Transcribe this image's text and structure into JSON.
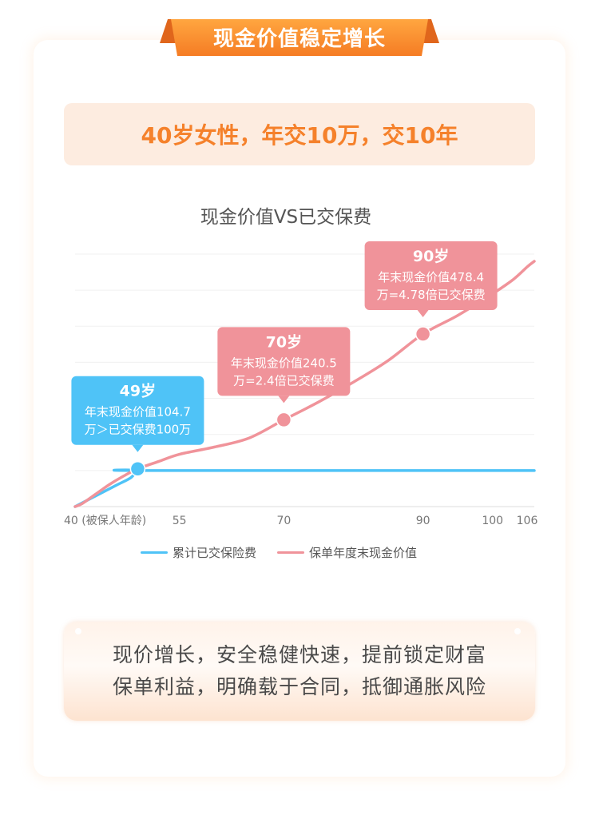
{
  "banner": {
    "title": "现金价值稳定增长"
  },
  "headline": "40岁女性，年交10万，交10年",
  "chart_data": {
    "type": "line",
    "title": "现金价值VS已交保费",
    "x_tick_labels": [
      {
        "x": 40,
        "label": "40 (被保人年龄)"
      },
      {
        "x": 55,
        "label": "55"
      },
      {
        "x": 70,
        "label": "70"
      },
      {
        "x": 90,
        "label": "90"
      },
      {
        "x": 100,
        "label": "100"
      },
      {
        "x": 106,
        "label": "106"
      }
    ],
    "xlim": [
      40,
      106
    ],
    "ylim": [
      0,
      700
    ],
    "grid": true,
    "legend_position": "bottom",
    "series": [
      {
        "name": "累计已交保险费",
        "color": "#4fc3f7",
        "points": [
          [
            40,
            0
          ],
          [
            42,
            20
          ],
          [
            44,
            40
          ],
          [
            46,
            60
          ],
          [
            48,
            80
          ],
          [
            49,
            100
          ],
          [
            50,
            100
          ],
          [
            106,
            100
          ]
        ]
      },
      {
        "name": "保单年度末现金价值",
        "color": "#f0939a",
        "points": [
          [
            40,
            0
          ],
          [
            41,
            8
          ],
          [
            43,
            35
          ],
          [
            45,
            62
          ],
          [
            47,
            85
          ],
          [
            49,
            104.7
          ],
          [
            52,
            125
          ],
          [
            55,
            145
          ],
          [
            60,
            165
          ],
          [
            65,
            190
          ],
          [
            70,
            240.5
          ],
          [
            75,
            290
          ],
          [
            80,
            345
          ],
          [
            85,
            405
          ],
          [
            90,
            478.4
          ],
          [
            95,
            530
          ],
          [
            100,
            590
          ],
          [
            103,
            630
          ],
          [
            105,
            665
          ],
          [
            106,
            680
          ]
        ]
      }
    ],
    "annotations": [
      {
        "x": 49,
        "y": 104.7,
        "series": "累计已交保险费",
        "title": "49岁",
        "line1": "年末现金价值104.7",
        "line2": "万＞已交保费100万",
        "color": "#4fc3f7"
      },
      {
        "x": 70,
        "y": 240.5,
        "series": "保单年度末现金价值",
        "title": "70岁",
        "line1": "年末现金价值240.5",
        "line2": "万=2.4倍已交保费",
        "color": "#f0939a"
      },
      {
        "x": 90,
        "y": 478.4,
        "series": "保单年度末现金价值",
        "title": "90岁",
        "line1": "年末现金价值478.4",
        "line2": "万=4.78倍已交保费",
        "color": "#f0939a"
      }
    ]
  },
  "summary": {
    "line1": "现价增长，安全稳健快速，提前锁定财富",
    "line2": "保单利益，明确载于合同，抵御通胀风险"
  },
  "colors": {
    "accent_orange": "#f5812b",
    "banner_gradient_start": "#ffa640",
    "banner_gradient_end": "#f57c24",
    "headline_bg": "#fdece0",
    "blue": "#4fc3f7",
    "pink": "#f0939a"
  }
}
